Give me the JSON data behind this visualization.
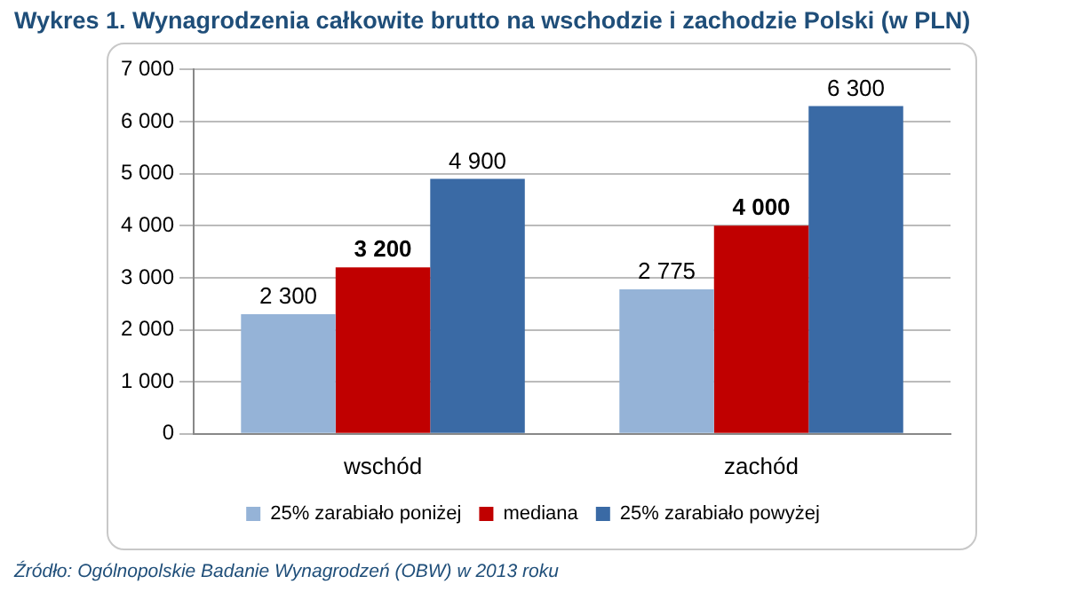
{
  "chart_data": {
    "type": "bar",
    "title": "Wykres 1. Wynagrodzenia całkowite brutto na wschodzie i zachodzie Polski (w PLN)",
    "categories": [
      "wschód",
      "zachód"
    ],
    "series": [
      {
        "name": "25% zarabiało poniżej",
        "color": "#95b3d7",
        "values": [
          2300,
          2775
        ],
        "value_labels": [
          "2 300",
          "2 775"
        ]
      },
      {
        "name": "mediana",
        "color": "#c00000",
        "values": [
          3200,
          4000
        ],
        "value_labels": [
          "3 200",
          "4 000"
        ]
      },
      {
        "name": "25% zarabiało powyżej",
        "color": "#3a6aa5",
        "values": [
          4900,
          6300
        ],
        "value_labels": [
          "4 900",
          "6 300"
        ]
      }
    ],
    "ylim": [
      0,
      7000
    ],
    "yticks": [
      0,
      {
        "value": 1000,
        "label": "1 000"
      },
      {
        "value": 2000,
        "label": "2 000"
      },
      {
        "value": 3000,
        "label": "3 000"
      },
      {
        "value": 4000,
        "label": "4 000"
      },
      {
        "value": 5000,
        "label": "5 000"
      },
      {
        "value": 6000,
        "label": "6 000"
      },
      {
        "value": 7000,
        "label": "7 000"
      }
    ],
    "grid": "y",
    "legend": "bottom",
    "annotations": [
      "Źródło: Ogólnopolskie Badanie Wynagrodzeń (OBW) w 2013 roku"
    ]
  }
}
